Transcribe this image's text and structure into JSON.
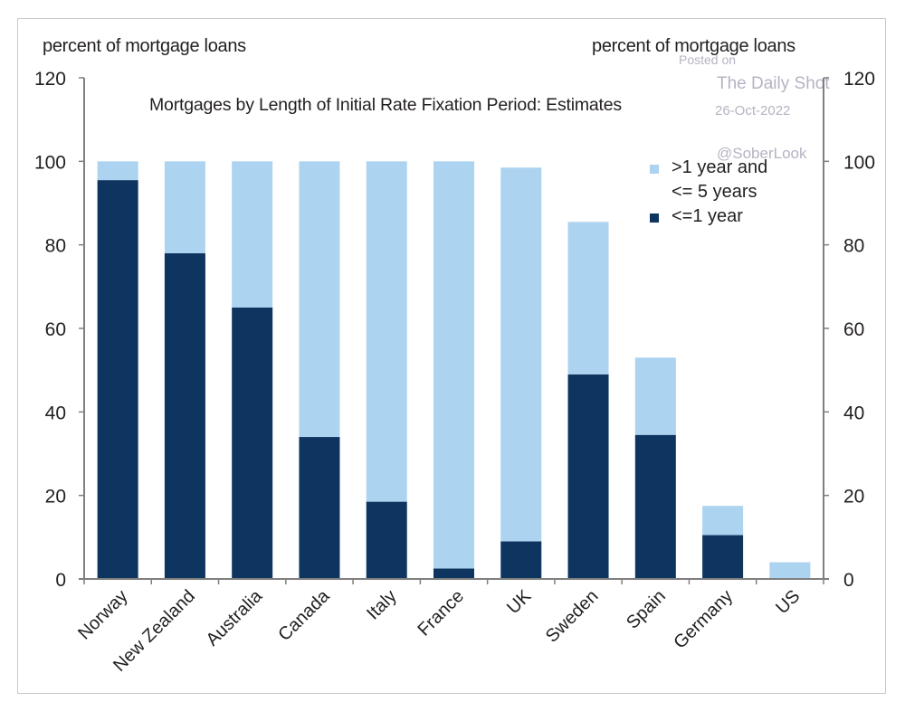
{
  "chart_data": {
    "type": "bar",
    "stacked": true,
    "title": "Mortgages by Length of Initial Rate Fixation Period: Estimates",
    "ylabel_left": "percent of mortgage loans",
    "ylabel_right": "percent of mortgage loans",
    "xlabel": "",
    "ylim": [
      0,
      120
    ],
    "yticks": [
      0,
      20,
      40,
      60,
      80,
      100,
      120
    ],
    "grid": false,
    "legend_position": "upper right",
    "categories": [
      "Norway",
      "New Zealand",
      "Australia",
      "Canada",
      "Italy",
      "France",
      "UK",
      "Sweden",
      "Spain",
      "Germany",
      "US"
    ],
    "series": [
      {
        "name": "<=1 year",
        "color": "#0d3560",
        "values": [
          95.5,
          78,
          65,
          34,
          18.5,
          2.5,
          9,
          49,
          34.5,
          10.5,
          0
        ]
      },
      {
        "name": ">1 year and <= 5 years",
        "color": "#acd3f0",
        "values": [
          4.5,
          22,
          35,
          66,
          81.5,
          97.5,
          89.5,
          36.5,
          18.5,
          7,
          4
        ]
      }
    ],
    "totals": [
      100,
      100,
      100,
      100,
      100,
      100,
      98.5,
      85.5,
      53,
      17.5,
      4
    ]
  },
  "labels": {
    "left_axis_title": "percent of mortgage loans",
    "right_axis_title": "percent of mortgage loans",
    "legend": [
      {
        "line1": ">1 year and",
        "line2": "<= 5 years",
        "color": "#acd3f0"
      },
      {
        "line1": "<=1 year",
        "color": "#0d3560"
      }
    ]
  },
  "watermark": {
    "line1": "Posted on",
    "line2": "The Daily Shot",
    "line3": "26-Oct-2022",
    "line4": "@SoberLook"
  },
  "colors": {
    "dark_series": "#0d3560",
    "light_series": "#acd3f0",
    "axis": "#7f7f7f",
    "text": "#231f20"
  }
}
